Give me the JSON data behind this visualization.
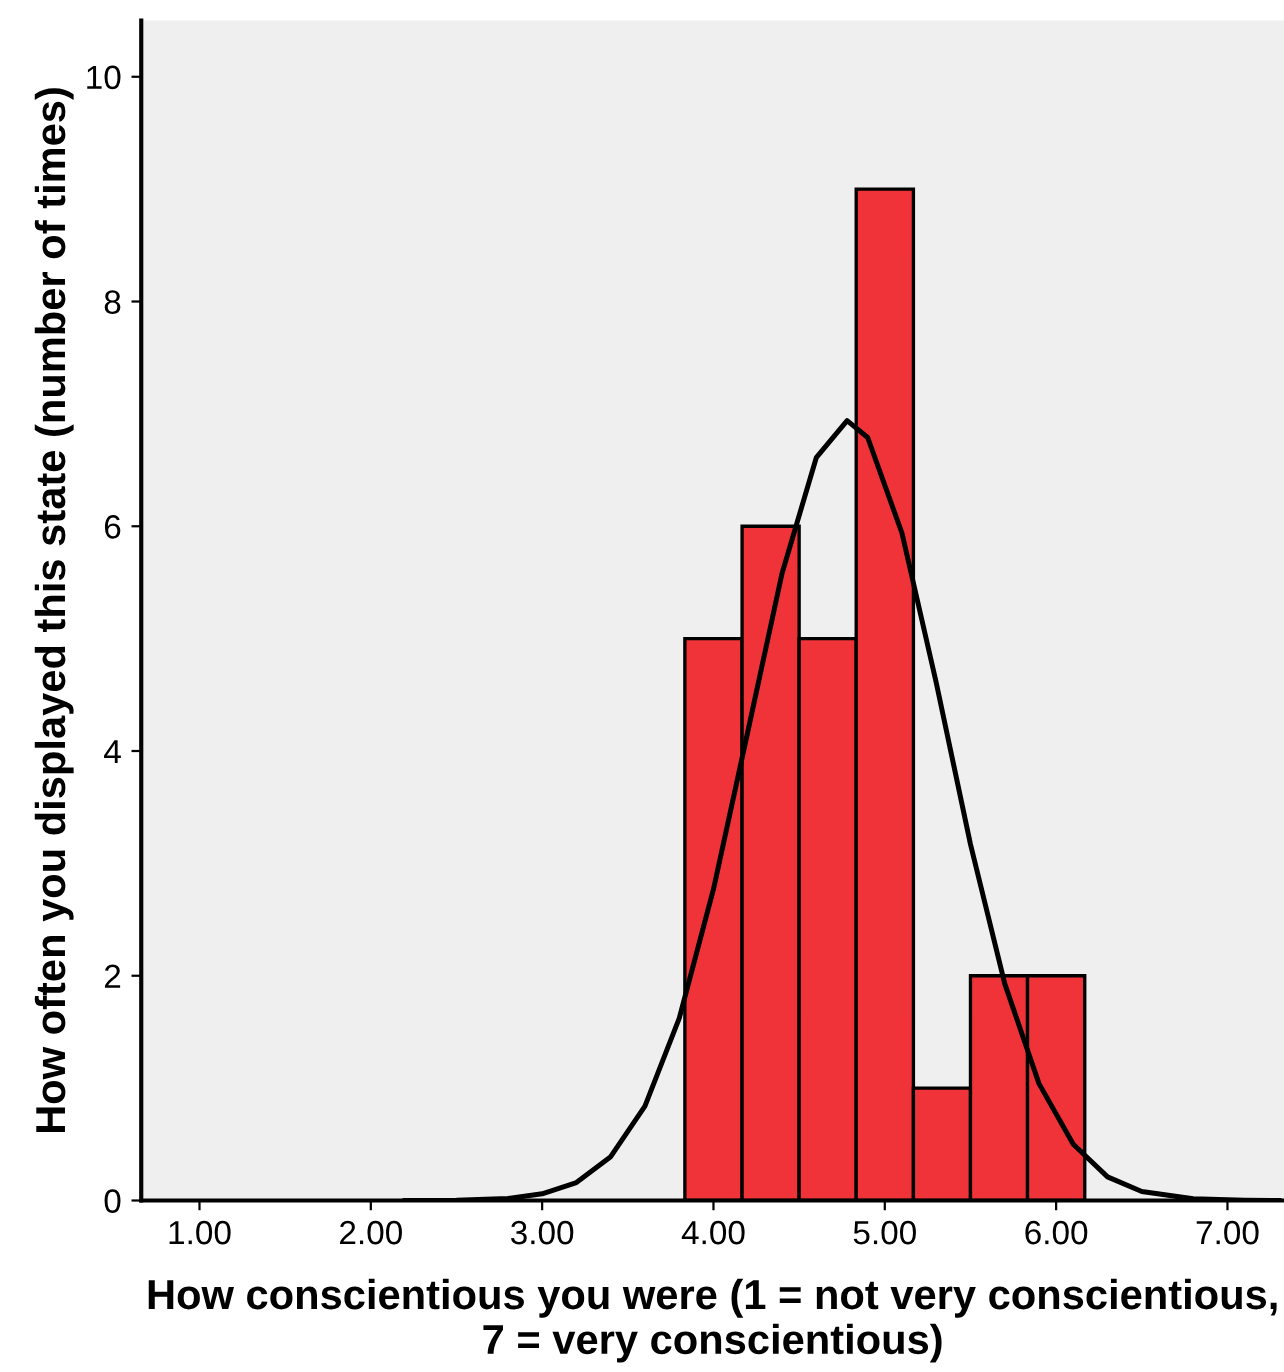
{
  "chart_data": {
    "type": "histogram",
    "xlabel": "How conscientious you were (1 = not very conscientious, 7 = very conscientious)",
    "ylabel": "How often you displayed this state (number of times)",
    "bins": [
      3.833,
      4.167,
      4.5,
      4.833,
      5.167,
      5.5,
      5.833,
      6.167
    ],
    "values": [
      5,
      6,
      5,
      9,
      1,
      2,
      2
    ],
    "color": "#ef3339",
    "series": [
      {
        "type": "line",
        "color": "#000000",
        "x": [
          2.2,
          2.5,
          2.8,
          3.0,
          3.2,
          3.4,
          3.6,
          3.8,
          4.0,
          4.2,
          4.4,
          4.6,
          4.78,
          4.9,
          5.1,
          5.3,
          5.5,
          5.7,
          5.9,
          6.1,
          6.3,
          6.5,
          6.8,
          7.1,
          7.3
        ],
        "values": [
          0,
          0.003,
          0.018,
          0.06,
          0.16,
          0.39,
          0.84,
          1.62,
          2.77,
          4.17,
          5.58,
          6.61,
          6.94,
          6.79,
          5.94,
          4.61,
          3.17,
          1.93,
          1.04,
          0.5,
          0.21,
          0.08,
          0.015,
          0.002,
          0
        ]
      }
    ],
    "xlim": [
      0.66,
      7.33
    ],
    "ylim": [
      0,
      10.5
    ],
    "xticks": [
      {
        "value": 1,
        "label": "1.00"
      },
      {
        "value": 2,
        "label": "2.00"
      },
      {
        "value": 3,
        "label": "3.00"
      },
      {
        "value": 4,
        "label": "4.00"
      },
      {
        "value": 5,
        "label": "5.00"
      },
      {
        "value": 6,
        "label": "6.00"
      },
      {
        "value": 7,
        "label": "7.00"
      }
    ],
    "yticks": [
      0,
      2,
      4,
      6,
      8,
      10
    ],
    "grid": false
  }
}
